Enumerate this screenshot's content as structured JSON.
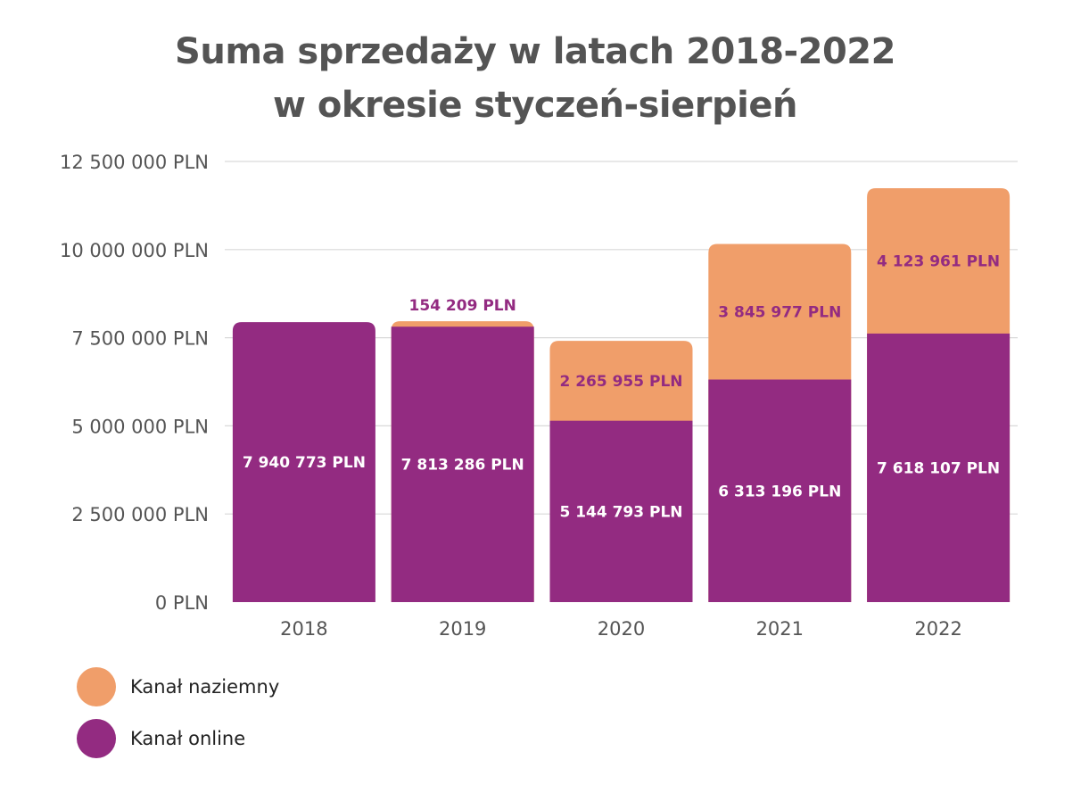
{
  "chart_data": {
    "type": "bar",
    "stacked": true,
    "title_lines": [
      "Suma sprzedaży w latach 2018-2022",
      "w okresie styczeń-sierpień"
    ],
    "categories": [
      "2018",
      "2019",
      "2020",
      "2021",
      "2022"
    ],
    "ylim": [
      0,
      12500000
    ],
    "yticks": [
      0,
      2500000,
      5000000,
      7500000,
      10000000,
      12500000
    ],
    "ytick_labels": [
      "0 PLN",
      "2 500 000 PLN",
      "5 000 000 PLN",
      "7 500 000 PLN",
      "10 000 000 PLN",
      "12 500 000 PLN"
    ],
    "grid": true,
    "legend_position": "bottom-left",
    "series": [
      {
        "name": "Kanał online",
        "color": "#932b81",
        "label_color": "#ffffff",
        "values": [
          7940773,
          7813286,
          5144793,
          6313196,
          7618107
        ],
        "labels": [
          "7 940 773 PLN",
          "7 813 286 PLN",
          "5 144 793 PLN",
          "6 313 196 PLN",
          "7 618 107 PLN"
        ]
      },
      {
        "name": "Kanał naziemny",
        "color": "#f09e6a",
        "label_color": "#932b81",
        "values": [
          0,
          154209,
          2265955,
          3845977,
          4123961
        ],
        "labels": [
          "",
          "154 209 PLN",
          "2 265 955 PLN",
          "3 845 977 PLN",
          "4 123 961 PLN"
        ]
      }
    ],
    "legend": [
      {
        "name": "Kanał naziemny",
        "color": "#f09e6a"
      },
      {
        "name": "Kanał online",
        "color": "#932b81"
      }
    ]
  }
}
